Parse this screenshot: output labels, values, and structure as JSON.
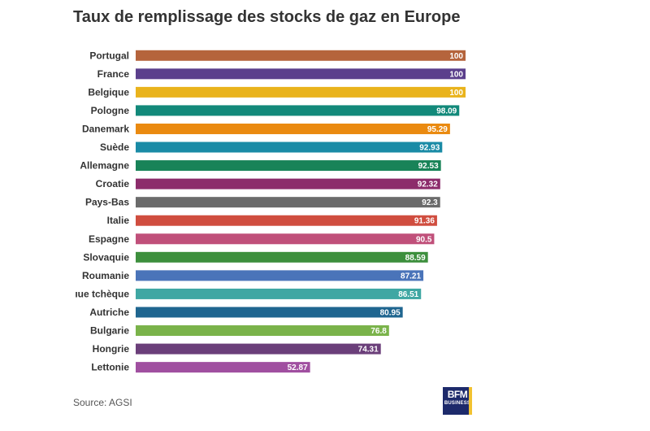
{
  "title": "Taux de remplissage des stocks de gaz en Europe",
  "source": "Source: AGSI",
  "logo": {
    "line1": "BFM",
    "line2": "BUSINESS"
  },
  "chart_data": {
    "type": "bar",
    "orientation": "horizontal",
    "title": "Taux de remplissage des stocks de gaz en Europe",
    "xlim": [
      0,
      100
    ],
    "grid": false,
    "legend": "none",
    "categories": [
      "Portugal",
      "France",
      "Belgique",
      "Pologne",
      "Danemark",
      "Suède",
      "Allemagne",
      "Croatie",
      "Pays-Bas",
      "Italie",
      "Espagne",
      "Slovaquie",
      "Roumanie",
      "République tchèque",
      "Autriche",
      "Bulgarie",
      "Hongrie",
      "Lettonie"
    ],
    "display_labels": [
      "Portugal",
      "France",
      "Belgique",
      "Pologne",
      "Danemark",
      "Suède",
      "Allemagne",
      "Croatie",
      "Pays-Bas",
      "Italie",
      "Espagne",
      "Slovaquie",
      "Roumanie",
      "ıue tchèque",
      "Autriche",
      "Bulgarie",
      "Hongrie",
      "Lettonie"
    ],
    "values": [
      100,
      100,
      100,
      98.09,
      95.29,
      92.93,
      92.53,
      92.32,
      92.3,
      91.36,
      90.5,
      88.59,
      87.21,
      86.51,
      80.95,
      76.8,
      74.31,
      52.87
    ],
    "value_labels": [
      "100",
      "100",
      "100",
      "98.09",
      "95.29",
      "92.93",
      "92.53",
      "92.32",
      "92.3",
      "91.36",
      "90.5",
      "88.59",
      "87.21",
      "86.51",
      "80.95",
      "76.8",
      "74.31",
      "52.87"
    ],
    "colors": [
      "#b5643c",
      "#5b3f8c",
      "#e9b31c",
      "#12897a",
      "#ea8a10",
      "#1a8ba6",
      "#188358",
      "#8c2c6b",
      "#6b6b6b",
      "#d04d3f",
      "#c0507a",
      "#3d8f3d",
      "#4a74b9",
      "#3fa7a3",
      "#1f6690",
      "#7ab34a",
      "#6b3f7a",
      "#a04fa0"
    ]
  }
}
